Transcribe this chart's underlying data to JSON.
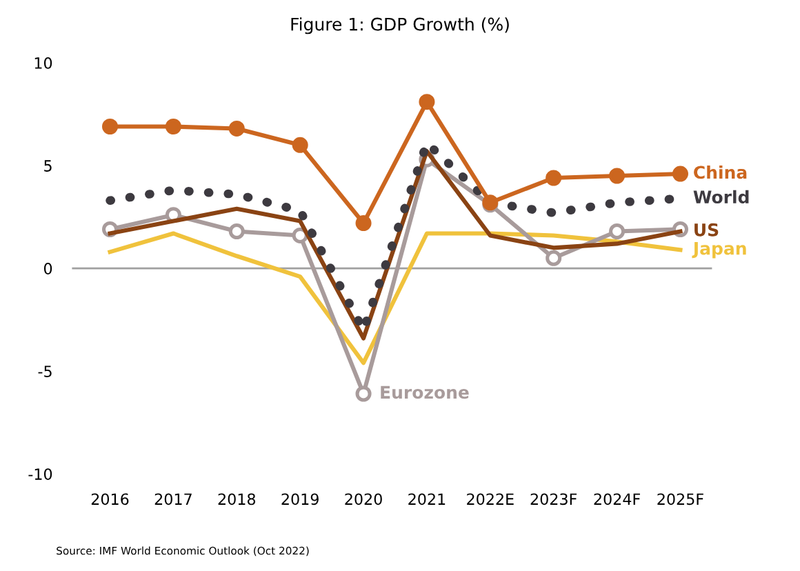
{
  "chart_data": {
    "type": "line",
    "title": "Figure 1: GDP Growth (%)",
    "categories": [
      "2016",
      "2017",
      "2018",
      "2019",
      "2020",
      "2021",
      "2022E",
      "2023F",
      "2024F",
      "2025F"
    ],
    "series": [
      {
        "name": "China",
        "color": "#cc661f",
        "marker": "circle",
        "line_style": "solid",
        "values": [
          6.9,
          6.9,
          6.8,
          6.0,
          2.2,
          8.1,
          3.2,
          4.4,
          4.5,
          4.6
        ]
      },
      {
        "name": "World",
        "color": "#3d3a40",
        "marker": "none",
        "line_style": "dotted",
        "values": [
          3.3,
          3.8,
          3.6,
          2.8,
          -3.0,
          6.1,
          3.2,
          2.7,
          3.2,
          3.4
        ]
      },
      {
        "name": "US",
        "color": "#8a4313",
        "marker": "none",
        "line_style": "solid",
        "values": [
          1.7,
          2.3,
          2.9,
          2.3,
          -3.4,
          5.7,
          1.6,
          1.0,
          1.2,
          1.8
        ]
      },
      {
        "name": "Eurozone",
        "color": "#a89b9b",
        "marker": "circle",
        "line_style": "solid",
        "values": [
          1.9,
          2.6,
          1.8,
          1.6,
          -6.1,
          5.3,
          3.1,
          0.5,
          1.8,
          1.9
        ]
      },
      {
        "name": "Japan",
        "color": "#f0c23c",
        "marker": "none",
        "line_style": "solid",
        "values": [
          0.8,
          1.7,
          0.6,
          -0.4,
          -4.6,
          1.7,
          1.7,
          1.6,
          1.3,
          0.9
        ]
      }
    ],
    "ylim": [
      -10,
      10
    ],
    "yticks": [
      -10,
      -5,
      0,
      5,
      10
    ],
    "ref_lines": [
      {
        "axis": "y",
        "value": 0,
        "color": "#a0a0a0"
      }
    ],
    "grid": false,
    "legend": false,
    "annotations": [
      "Source: IMF World Economic Outlook (Oct 2022)"
    ]
  }
}
